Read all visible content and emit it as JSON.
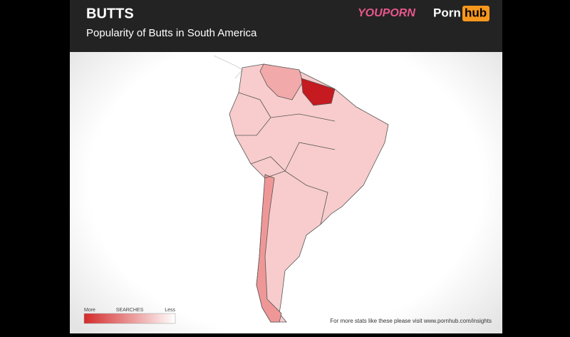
{
  "header": {
    "title": "BUTTS",
    "subtitle": "Popularity of Butts in South America",
    "logos": {
      "youporn": "YOUPORN",
      "porn": "Porn",
      "hub": "hub"
    }
  },
  "legend": {
    "more": "More",
    "label": "SEARCHES",
    "less": "Less"
  },
  "footer": "For more stats like these please visit www.pornhub.com/insights"
}
